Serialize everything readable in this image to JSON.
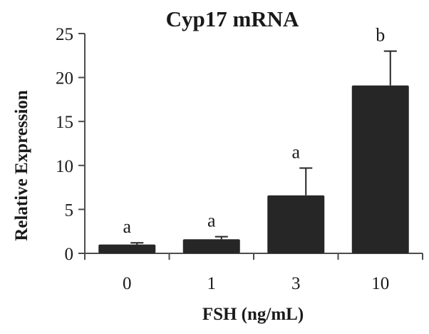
{
  "chart_data": {
    "type": "bar",
    "title": "Cyp17 mRNA",
    "xlabel": "FSH (ng/mL)",
    "ylabel": "Relative Expression",
    "categories": [
      "0",
      "1",
      "3",
      "10"
    ],
    "values": [
      1.0,
      1.6,
      6.6,
      19.1
    ],
    "error_upper": [
      1.2,
      1.9,
      9.7,
      23.0
    ],
    "annotations": [
      "a",
      "a",
      "a",
      "b"
    ],
    "ylim": [
      0,
      25
    ],
    "yticks": [
      "0",
      "5",
      "10",
      "15",
      "20",
      "25"
    ],
    "bar_color": "#262626",
    "grid": false,
    "legend": "none"
  }
}
